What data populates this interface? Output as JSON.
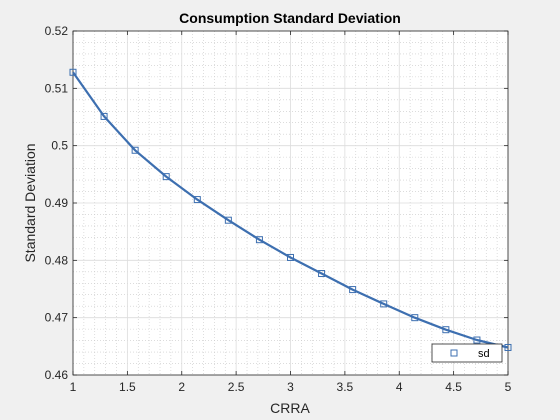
{
  "chart_data": {
    "type": "line",
    "title": "Consumption Standard Deviation",
    "xlabel": "CRRA",
    "ylabel": "Standard Deviation",
    "xlim": [
      1,
      5
    ],
    "ylim": [
      0.46,
      0.52
    ],
    "xticks": [
      1,
      1.5,
      2,
      2.5,
      3,
      3.5,
      4,
      4.5,
      5
    ],
    "xtick_labels": [
      "1",
      "1.5",
      "2",
      "2.5",
      "3",
      "3.5",
      "4",
      "4.5",
      "5"
    ],
    "yticks": [
      0.46,
      0.47,
      0.48,
      0.49,
      0.5,
      0.51,
      0.52
    ],
    "ytick_labels": [
      "0.46",
      "0.47",
      "0.48",
      "0.49",
      "0.5",
      "0.51",
      "0.52"
    ],
    "grid": true,
    "minor_grid": true,
    "legend_position": "bottom-right",
    "series": [
      {
        "name": "sd",
        "color": "#3d6fb0",
        "marker": "square",
        "x": [
          1.0,
          1.2857,
          1.5714,
          1.8571,
          2.1429,
          2.4286,
          2.7143,
          3.0,
          3.2857,
          3.5714,
          3.8571,
          4.1429,
          4.4286,
          4.7143,
          5.0
        ],
        "y": [
          0.5128,
          0.5051,
          0.4992,
          0.4946,
          0.4906,
          0.487,
          0.4836,
          0.4805,
          0.4777,
          0.4749,
          0.4724,
          0.47,
          0.4679,
          0.4661,
          0.4648
        ]
      }
    ]
  }
}
